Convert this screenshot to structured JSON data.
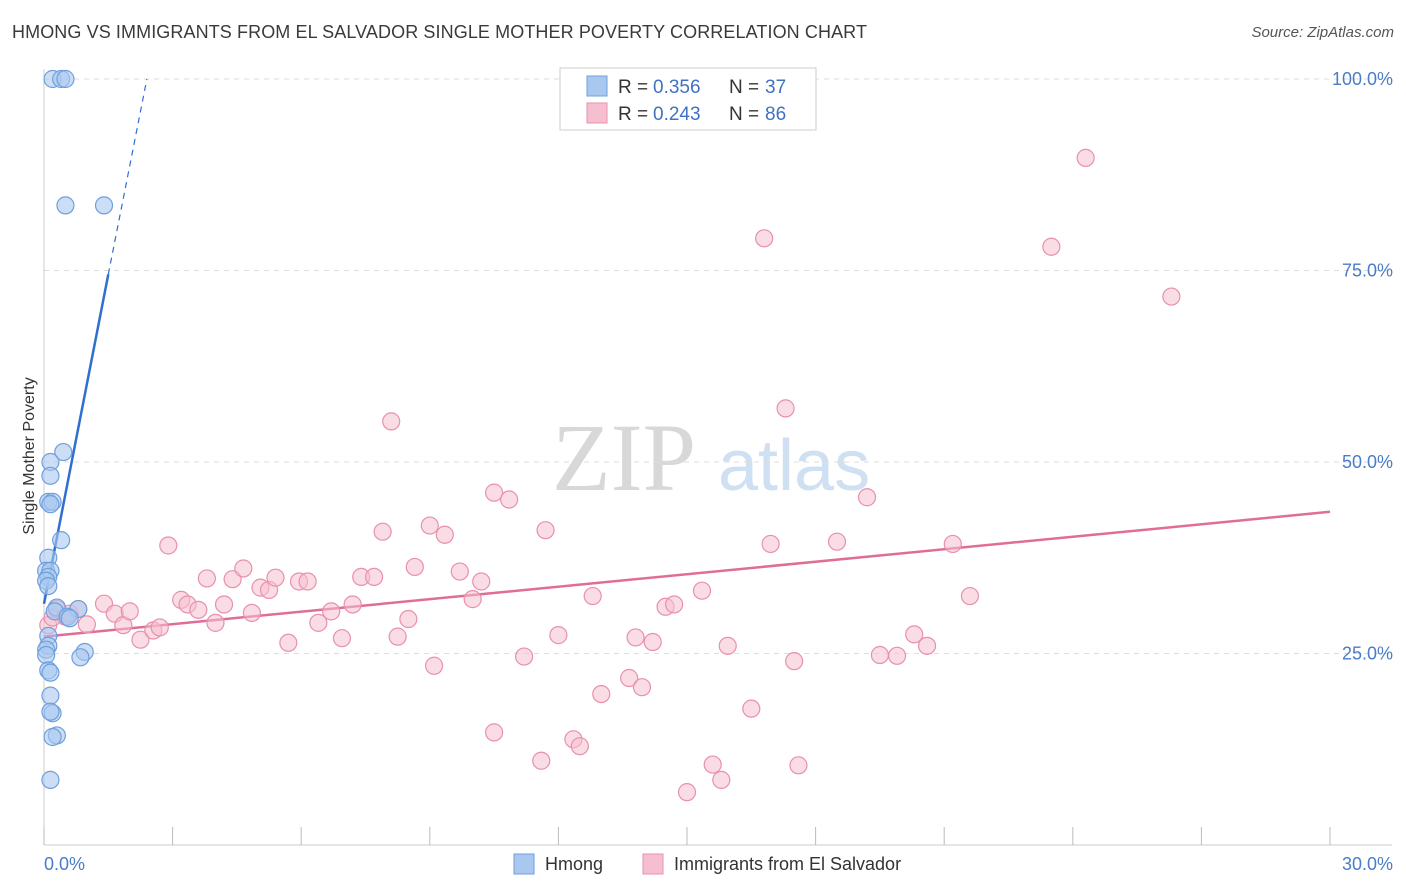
{
  "title": "HMONG VS IMMIGRANTS FROM EL SALVADOR SINGLE MOTHER POVERTY CORRELATION CHART",
  "source": "Source: ZipAtlas.com",
  "colors": {
    "hmong_fill": "#a9c8f0",
    "hmong_stroke": "#6f9fdc",
    "hmong_line": "#2f6fd0",
    "salvador_fill": "#f6bfd0",
    "salvador_stroke": "#e890ae",
    "salvador_line": "#e06d98",
    "tick_text": "#4a7cc7",
    "grid": "#dddddd"
  },
  "legend": {
    "rows": [
      {
        "r_label": "R = ",
        "r_value": "0.356",
        "n_label": "N = ",
        "n_value": "37"
      },
      {
        "r_label": "R = ",
        "r_value": "0.243",
        "n_label": "N = ",
        "n_value": "86"
      }
    ]
  },
  "bottom_legend": [
    "Hmong",
    "Immigrants from El Salvador"
  ],
  "watermark": {
    "zip": "ZIP",
    "atlas": "atlas"
  },
  "chart_data": {
    "type": "scatter",
    "title": "HMONG VS IMMIGRANTS FROM EL SALVADOR SINGLE MOTHER POVERTY CORRELATION CHART",
    "xlabel": "",
    "ylabel": "Single Mother Poverty",
    "xlim": [
      0,
      30
    ],
    "ylim": [
      0,
      100
    ],
    "x_ticks": [
      0,
      30
    ],
    "x_tick_labels": [
      "0.0%",
      "30.0%"
    ],
    "y_ticks": [
      25,
      50,
      75,
      100
    ],
    "y_tick_labels": [
      "25.0%",
      "50.0%",
      "75.0%",
      "100.0%"
    ],
    "grid": "horizontal dashed",
    "legend_position": "top-center",
    "series": [
      {
        "name": "Hmong",
        "r": 0.356,
        "n": 37,
        "trend": {
          "x0": 0.0,
          "y0": 31.5,
          "x1": 1.5,
          "y1": 74.5,
          "extend_x": 2.4,
          "extend_y": 100
        },
        "points": [
          [
            0.2,
            100
          ],
          [
            0.4,
            100
          ],
          [
            0.5,
            100
          ],
          [
            0.5,
            83.5
          ],
          [
            1.4,
            83.5
          ],
          [
            0.45,
            51.3
          ],
          [
            0.15,
            50
          ],
          [
            0.15,
            48.2
          ],
          [
            0.1,
            44.8
          ],
          [
            0.2,
            44.8
          ],
          [
            0.15,
            44.5
          ],
          [
            0.4,
            39.8
          ],
          [
            0.1,
            37.5
          ],
          [
            0.05,
            35.8
          ],
          [
            0.15,
            35.8
          ],
          [
            0.1,
            35
          ],
          [
            0.05,
            34.5
          ],
          [
            0.1,
            33.8
          ],
          [
            0.3,
            31
          ],
          [
            0.25,
            30.5
          ],
          [
            0.8,
            30.8
          ],
          [
            0.55,
            29.8
          ],
          [
            0.6,
            29.6
          ],
          [
            0.1,
            27.3
          ],
          [
            0.1,
            26
          ],
          [
            0.05,
            25.5
          ],
          [
            0.05,
            24.8
          ],
          [
            0.95,
            25.2
          ],
          [
            0.85,
            24.5
          ],
          [
            0.1,
            22.8
          ],
          [
            0.15,
            22.5
          ],
          [
            0.15,
            19.5
          ],
          [
            0.2,
            17.2
          ],
          [
            0.15,
            17.4
          ],
          [
            0.3,
            14.3
          ],
          [
            0.2,
            14.1
          ],
          [
            0.15,
            8.5
          ]
        ]
      },
      {
        "name": "Immigrants from El Salvador",
        "r": 0.243,
        "n": 86,
        "trend": {
          "x0": 0.0,
          "y0": 27.2,
          "x1": 30.0,
          "y1": 43.5
        },
        "points": [
          [
            0.1,
            28.7
          ],
          [
            0.2,
            29.7
          ],
          [
            0.3,
            30.8
          ],
          [
            0.5,
            29.8
          ],
          [
            0.6,
            30.2
          ],
          [
            0.8,
            30.8
          ],
          [
            1.0,
            28.8
          ],
          [
            1.4,
            31.5
          ],
          [
            1.65,
            30.2
          ],
          [
            1.85,
            28.7
          ],
          [
            2.0,
            30.5
          ],
          [
            2.25,
            26.8
          ],
          [
            2.55,
            28.0
          ],
          [
            2.7,
            28.4
          ],
          [
            2.9,
            39.1
          ],
          [
            3.2,
            32.0
          ],
          [
            3.35,
            31.4
          ],
          [
            3.6,
            30.7
          ],
          [
            3.8,
            34.8
          ],
          [
            4.0,
            29.0
          ],
          [
            4.2,
            31.4
          ],
          [
            4.4,
            34.7
          ],
          [
            4.65,
            36.1
          ],
          [
            4.85,
            30.3
          ],
          [
            5.05,
            33.6
          ],
          [
            5.25,
            33.3
          ],
          [
            5.4,
            34.9
          ],
          [
            5.7,
            26.4
          ],
          [
            5.95,
            34.4
          ],
          [
            6.15,
            34.4
          ],
          [
            6.4,
            29.0
          ],
          [
            6.7,
            30.5
          ],
          [
            6.95,
            27.0
          ],
          [
            7.2,
            31.4
          ],
          [
            7.4,
            35.0
          ],
          [
            7.7,
            35.0
          ],
          [
            7.9,
            40.9
          ],
          [
            8.1,
            55.3
          ],
          [
            8.25,
            27.2
          ],
          [
            8.5,
            29.5
          ],
          [
            8.65,
            36.3
          ],
          [
            9.0,
            41.7
          ],
          [
            9.35,
            40.5
          ],
          [
            9.1,
            23.4
          ],
          [
            9.7,
            35.7
          ],
          [
            10.0,
            32.1
          ],
          [
            10.2,
            34.4
          ],
          [
            10.5,
            46.0
          ],
          [
            10.85,
            45.1
          ],
          [
            10.5,
            14.7
          ],
          [
            11.2,
            24.6
          ],
          [
            11.7,
            41.1
          ],
          [
            12.0,
            27.4
          ],
          [
            12.35,
            13.8
          ],
          [
            12.5,
            12.9
          ],
          [
            11.6,
            11.0
          ],
          [
            12.8,
            32.5
          ],
          [
            13.0,
            19.7
          ],
          [
            13.65,
            21.8
          ],
          [
            13.95,
            20.6
          ],
          [
            13.8,
            27.1
          ],
          [
            14.2,
            26.5
          ],
          [
            14.5,
            31.1
          ],
          [
            14.7,
            31.4
          ],
          [
            15.0,
            6.9
          ],
          [
            15.35,
            33.2
          ],
          [
            15.6,
            10.5
          ],
          [
            15.8,
            8.5
          ],
          [
            15.95,
            26.0
          ],
          [
            16.8,
            79.2
          ],
          [
            16.5,
            17.8
          ],
          [
            16.95,
            39.3
          ],
          [
            17.3,
            57.0
          ],
          [
            17.5,
            24.0
          ],
          [
            17.6,
            10.4
          ],
          [
            18.5,
            39.6
          ],
          [
            19.2,
            45.4
          ],
          [
            19.5,
            24.8
          ],
          [
            19.9,
            24.7
          ],
          [
            20.3,
            27.5
          ],
          [
            20.6,
            26.0
          ],
          [
            21.2,
            39.3
          ],
          [
            21.6,
            32.5
          ],
          [
            23.5,
            78.1
          ],
          [
            24.3,
            89.7
          ],
          [
            26.3,
            71.6
          ]
        ]
      }
    ]
  }
}
